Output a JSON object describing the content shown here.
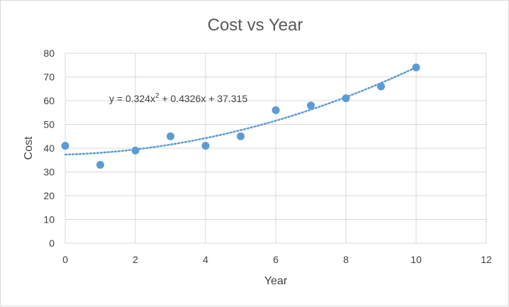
{
  "chart_data": {
    "type": "scatter",
    "title": "Cost vs Year",
    "xlabel": "Year",
    "ylabel": "Cost",
    "xlim": [
      0,
      12
    ],
    "ylim": [
      0,
      80
    ],
    "xticks": [
      0,
      2,
      4,
      6,
      8,
      10,
      12
    ],
    "yticks": [
      0,
      10,
      20,
      30,
      40,
      50,
      60,
      70,
      80
    ],
    "grid": true,
    "legend": "none",
    "marker_color": "#5b9bd5",
    "series": [
      {
        "x": [
          0,
          1,
          2,
          3,
          4,
          5,
          6,
          7,
          8,
          9,
          10
        ],
        "values": [
          41,
          33,
          39,
          45,
          41,
          45,
          56,
          58,
          61,
          66,
          74
        ]
      }
    ],
    "trendline": {
      "type": "polynomial",
      "order": 2,
      "coefficients": [
        0.324,
        0.4326,
        37.315
      ],
      "x_range": [
        0,
        10
      ],
      "style": "dotted",
      "color": "#5b9bd5",
      "equation_prefix": "y = 0.324x",
      "equation_sup": "2",
      "equation_suffix": " + 0.4326x + 37.315"
    }
  }
}
